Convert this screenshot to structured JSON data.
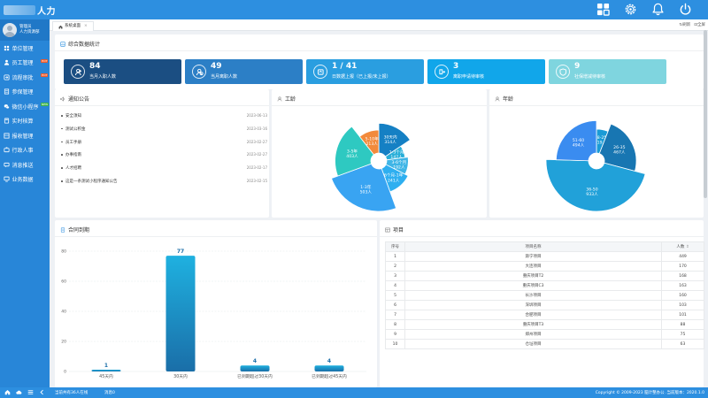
{
  "app": {
    "brand_text": "人力"
  },
  "user": {
    "name": "管理员",
    "dept": "人力资源部"
  },
  "sidebar": {
    "items": [
      {
        "label": "单位管理",
        "icon": "grid-icon",
        "badge": ""
      },
      {
        "label": "员工管理",
        "icon": "user-icon",
        "badge": "HOT"
      },
      {
        "label": "流程审批",
        "icon": "flow-icon",
        "badge": "HOT"
      },
      {
        "label": "参保管理",
        "icon": "doc-icon",
        "badge": ""
      },
      {
        "label": "微信小程序",
        "icon": "wechat-icon",
        "badge": "NEW"
      },
      {
        "label": "实时核算",
        "icon": "calc-icon",
        "badge": ""
      },
      {
        "label": "报收管理",
        "icon": "report-icon",
        "badge": ""
      },
      {
        "label": "行政人事",
        "icon": "admin-icon",
        "badge": ""
      },
      {
        "label": "消息推送",
        "icon": "message-icon",
        "badge": ""
      },
      {
        "label": "业务数据",
        "icon": "monitor-icon",
        "badge": ""
      }
    ]
  },
  "tabs": [
    {
      "label": "系统桌面"
    }
  ],
  "tab_actions": {
    "refresh": "↻刷新",
    "fullscreen": "⊡全屏"
  },
  "stats": {
    "title": "综合数据统计",
    "cards": [
      {
        "value": "84",
        "label": "当月入职人数",
        "color": "#1b4e82",
        "icon": "user-add-icon"
      },
      {
        "value": "49",
        "label": "当月离职人数",
        "color": "#2c7fc6",
        "icon": "user-remove-icon"
      },
      {
        "value": "1 / 41",
        "label": "日数据上报（已上报/未上报）",
        "color": "#2a9ee0",
        "icon": "upload-icon"
      },
      {
        "value": "3",
        "label": "离职申请待审核",
        "color": "#11a6ea",
        "icon": "exit-icon"
      },
      {
        "value": "9",
        "label": "社保增减待审核",
        "color": "#7fd5df",
        "icon": "shield-icon"
      }
    ]
  },
  "notices": {
    "title": "通知公告",
    "items": [
      {
        "title": "安全须知",
        "date": "2023-06-13"
      },
      {
        "title": "测试公积金",
        "date": "2023-03-16"
      },
      {
        "title": "员工手册",
        "date": "2023-02-27"
      },
      {
        "title": "办事指南",
        "date": "2023-02-27"
      },
      {
        "title": "人才招聘",
        "date": "2023-02-17"
      },
      {
        "title": "这是一条测试小程序通知公告",
        "date": "2023-02-15"
      }
    ]
  },
  "seniority": {
    "title": "工龄"
  },
  "age": {
    "title": "年龄"
  },
  "contract": {
    "title": "合同到期"
  },
  "project": {
    "title": "项目",
    "columns": {
      "index": "序号",
      "name": "项目名称",
      "count": "人数"
    },
    "rows": [
      {
        "index": "1",
        "name": "滁宁项目",
        "count": "449"
      },
      {
        "index": "2",
        "name": "大连项目",
        "count": "170"
      },
      {
        "index": "3",
        "name": "重庆项目T2",
        "count": "168"
      },
      {
        "index": "4",
        "name": "重庆项目C3",
        "count": "163"
      },
      {
        "index": "5",
        "name": "长沙项目",
        "count": "160"
      },
      {
        "index": "6",
        "name": "深圳项目",
        "count": "103"
      },
      {
        "index": "7",
        "name": "合肥项目",
        "count": "101"
      },
      {
        "index": "8",
        "name": "重庆项目T3",
        "count": "88"
      },
      {
        "index": "9",
        "name": "郑州项目",
        "count": "75"
      },
      {
        "index": "10",
        "name": "仓址项目",
        "count": "63"
      }
    ]
  },
  "footer": {
    "online": "当前共有36人在线",
    "message": "消息0",
    "copyright": "Copyright © 2009-2023 脑计整办公 .当前版本：2020.1.0"
  },
  "chart_data": [
    {
      "type": "pie",
      "title": "工龄",
      "donut": true,
      "rose": true,
      "slices": [
        {
          "name": "30天内",
          "value": 314,
          "color": "#1580c4"
        },
        {
          "name": "1-3个月",
          "value": 147,
          "color": "#27aed8"
        },
        {
          "name": "3-6个月",
          "value": 192,
          "color": "#3fb5e6"
        },
        {
          "name": "6个月-1年",
          "value": 241,
          "color": "#2eaff0"
        },
        {
          "name": "1-3年",
          "value": 503,
          "color": "#39a4f2"
        },
        {
          "name": "3-5年",
          "value": 403,
          "color": "#2ec9c1"
        },
        {
          "name": "5-10年",
          "value": 213,
          "color": "#f28a3c"
        }
      ]
    },
    {
      "type": "pie",
      "title": "年龄",
      "donut": true,
      "rose": true,
      "slices": [
        {
          "name": "18-25",
          "value": 119,
          "color": "#1a9bd6"
        },
        {
          "name": "26-35",
          "value": 467,
          "color": "#1876b2"
        },
        {
          "name": "36-50",
          "value": 933,
          "color": "#21a1d9"
        },
        {
          "name": "51-60",
          "value": 494,
          "color": "#3a8cf0"
        }
      ]
    },
    {
      "type": "bar",
      "title": "合同到期",
      "categories": [
        "45天内",
        "30天内",
        "已到期超过30天内",
        "已到期超过45天内"
      ],
      "values": [
        1,
        77,
        4,
        4
      ],
      "ylim": [
        0,
        80
      ],
      "yticks": [
        0,
        20,
        40,
        60,
        80
      ],
      "grid": true,
      "color": "#1f9fd8"
    }
  ]
}
